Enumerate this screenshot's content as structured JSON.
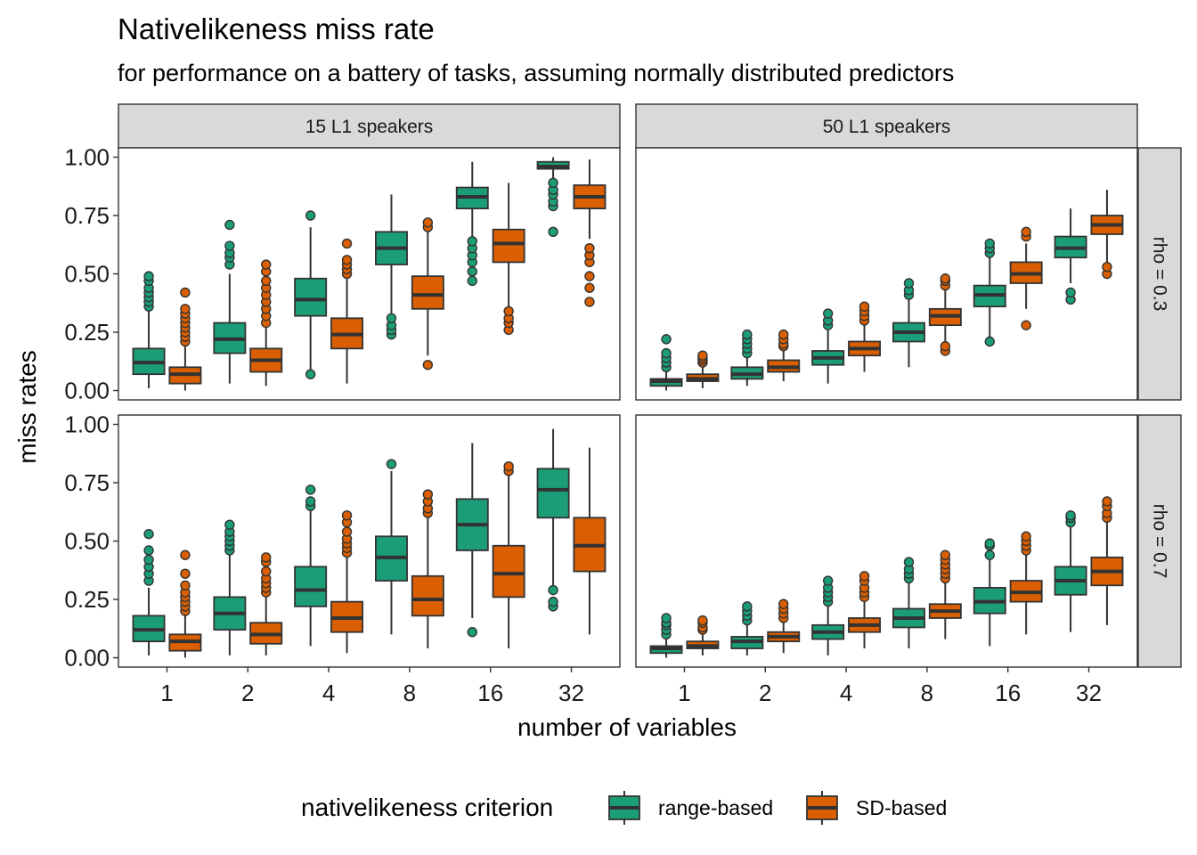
{
  "chart_data": {
    "type": "boxplot",
    "title": "Nativelikeness miss rate",
    "subtitle": "for performance on a battery of tasks, assuming normally distributed predictors",
    "xlabel": "number of variables",
    "ylabel": "miss rates",
    "categories": [
      "1",
      "2",
      "4",
      "8",
      "16",
      "32"
    ],
    "y_ticks": [
      "0.00",
      "0.25",
      "0.50",
      "0.75",
      "1.00"
    ],
    "ylim": [
      -0.04,
      1.04
    ],
    "grid": false,
    "legend": {
      "title": "nativelikeness criterion",
      "position": "bottom",
      "entries": [
        {
          "label": "range-based",
          "color": "#1B9E77"
        },
        {
          "label": "SD-based",
          "color": "#D95F02"
        }
      ]
    },
    "columns": [
      "15 L1 speakers",
      "50 L1 speakers"
    ],
    "rows": [
      "rho = 0.3",
      "rho = 0.7"
    ],
    "panels": [
      {
        "column": "15 L1 speakers",
        "row": "rho = 0.3",
        "series": [
          {
            "name": "range-based",
            "boxes": [
              {
                "min": 0.01,
                "q1": 0.07,
                "median": 0.12,
                "q3": 0.18,
                "max": 0.34,
                "outliers": [
                  0.36,
                  0.38,
                  0.4,
                  0.42,
                  0.44,
                  0.47,
                  0.49
                ]
              },
              {
                "min": 0.03,
                "q1": 0.16,
                "median": 0.22,
                "q3": 0.29,
                "max": 0.5,
                "outliers": [
                  0.54,
                  0.57,
                  0.59,
                  0.62,
                  0.71
                ]
              },
              {
                "min": 0.07,
                "q1": 0.32,
                "median": 0.39,
                "q3": 0.48,
                "max": 0.7,
                "outliers": [
                  0.07,
                  0.75
                ]
              },
              {
                "min": 0.32,
                "q1": 0.54,
                "median": 0.61,
                "q3": 0.68,
                "max": 0.84,
                "outliers": [
                  0.24,
                  0.26,
                  0.28,
                  0.31
                ]
              },
              {
                "min": 0.65,
                "q1": 0.78,
                "median": 0.83,
                "q3": 0.87,
                "max": 0.98,
                "outliers": [
                  0.47,
                  0.51,
                  0.55,
                  0.58,
                  0.61,
                  0.64
                ]
              },
              {
                "min": 0.91,
                "q1": 0.95,
                "median": 0.96,
                "q3": 0.98,
                "max": 1.0,
                "outliers": [
                  0.68,
                  0.79,
                  0.81,
                  0.84,
                  0.86,
                  0.89
                ]
              }
            ]
          },
          {
            "name": "SD-based",
            "boxes": [
              {
                "min": 0.0,
                "q1": 0.03,
                "median": 0.07,
                "q3": 0.1,
                "max": 0.19,
                "outliers": [
                  0.21,
                  0.23,
                  0.25,
                  0.27,
                  0.29,
                  0.31,
                  0.33,
                  0.35,
                  0.42
                ]
              },
              {
                "min": 0.02,
                "q1": 0.08,
                "median": 0.13,
                "q3": 0.18,
                "max": 0.27,
                "outliers": [
                  0.29,
                  0.32,
                  0.35,
                  0.38,
                  0.41,
                  0.44,
                  0.47,
                  0.51,
                  0.54
                ]
              },
              {
                "min": 0.03,
                "q1": 0.18,
                "median": 0.24,
                "q3": 0.31,
                "max": 0.48,
                "outliers": [
                  0.5,
                  0.52,
                  0.54,
                  0.56,
                  0.63
                ]
              },
              {
                "min": 0.15,
                "q1": 0.35,
                "median": 0.41,
                "q3": 0.49,
                "max": 0.68,
                "outliers": [
                  0.11,
                  0.7,
                  0.72
                ]
              },
              {
                "min": 0.35,
                "q1": 0.55,
                "median": 0.63,
                "q3": 0.69,
                "max": 0.89,
                "outliers": [
                  0.26,
                  0.29,
                  0.31,
                  0.34
                ]
              },
              {
                "min": 0.65,
                "q1": 0.78,
                "median": 0.83,
                "q3": 0.88,
                "max": 0.99,
                "outliers": [
                  0.38,
                  0.44,
                  0.49,
                  0.55,
                  0.58,
                  0.61
                ]
              }
            ]
          }
        ]
      },
      {
        "column": "50 L1 speakers",
        "row": "rho = 0.3",
        "series": [
          {
            "name": "range-based",
            "boxes": [
              {
                "min": 0.0,
                "q1": 0.02,
                "median": 0.04,
                "q3": 0.05,
                "max": 0.09,
                "outliers": [
                  0.1,
                  0.12,
                  0.14,
                  0.16,
                  0.22
                ]
              },
              {
                "min": 0.02,
                "q1": 0.05,
                "median": 0.07,
                "q3": 0.1,
                "max": 0.15,
                "outliers": [
                  0.16,
                  0.18,
                  0.2,
                  0.22,
                  0.24
                ]
              },
              {
                "min": 0.03,
                "q1": 0.11,
                "median": 0.14,
                "q3": 0.17,
                "max": 0.26,
                "outliers": [
                  0.28,
                  0.3,
                  0.33
                ]
              },
              {
                "min": 0.1,
                "q1": 0.21,
                "median": 0.25,
                "q3": 0.29,
                "max": 0.39,
                "outliers": [
                  0.41,
                  0.43,
                  0.46
                ]
              },
              {
                "min": 0.21,
                "q1": 0.36,
                "median": 0.41,
                "q3": 0.45,
                "max": 0.57,
                "outliers": [
                  0.21,
                  0.59,
                  0.61,
                  0.63
                ]
              },
              {
                "min": 0.46,
                "q1": 0.57,
                "median": 0.61,
                "q3": 0.66,
                "max": 0.78,
                "outliers": [
                  0.39,
                  0.42
                ]
              }
            ]
          },
          {
            "name": "SD-based",
            "boxes": [
              {
                "min": 0.01,
                "q1": 0.04,
                "median": 0.05,
                "q3": 0.07,
                "max": 0.11,
                "outliers": [
                  0.12,
                  0.13,
                  0.14,
                  0.15
                ]
              },
              {
                "min": 0.04,
                "q1": 0.08,
                "median": 0.1,
                "q3": 0.13,
                "max": 0.17,
                "outliers": [
                  0.19,
                  0.2,
                  0.22,
                  0.24
                ]
              },
              {
                "min": 0.08,
                "q1": 0.15,
                "median": 0.18,
                "q3": 0.21,
                "max": 0.28,
                "outliers": [
                  0.3,
                  0.32,
                  0.34,
                  0.36
                ]
              },
              {
                "min": 0.19,
                "q1": 0.28,
                "median": 0.32,
                "q3": 0.35,
                "max": 0.44,
                "outliers": [
                  0.17,
                  0.19,
                  0.45,
                  0.47,
                  0.48
                ]
              },
              {
                "min": 0.35,
                "q1": 0.46,
                "median": 0.5,
                "q3": 0.55,
                "max": 0.63,
                "outliers": [
                  0.28,
                  0.66,
                  0.68
                ]
              },
              {
                "min": 0.55,
                "q1": 0.67,
                "median": 0.71,
                "q3": 0.75,
                "max": 0.86,
                "outliers": [
                  0.5,
                  0.53
                ]
              }
            ]
          }
        ]
      },
      {
        "column": "15 L1 speakers",
        "row": "rho = 0.7",
        "series": [
          {
            "name": "range-based",
            "boxes": [
              {
                "min": 0.01,
                "q1": 0.07,
                "median": 0.12,
                "q3": 0.18,
                "max": 0.3,
                "outliers": [
                  0.33,
                  0.36,
                  0.39,
                  0.42,
                  0.46,
                  0.53
                ]
              },
              {
                "min": 0.01,
                "q1": 0.12,
                "median": 0.19,
                "q3": 0.26,
                "max": 0.45,
                "outliers": [
                  0.46,
                  0.48,
                  0.5,
                  0.52,
                  0.54,
                  0.57
                ]
              },
              {
                "min": 0.05,
                "q1": 0.22,
                "median": 0.29,
                "q3": 0.39,
                "max": 0.63,
                "outliers": [
                  0.65,
                  0.67,
                  0.72
                ]
              },
              {
                "min": 0.1,
                "q1": 0.33,
                "median": 0.43,
                "q3": 0.52,
                "max": 0.8,
                "outliers": [
                  0.83
                ]
              },
              {
                "min": 0.17,
                "q1": 0.46,
                "median": 0.57,
                "q3": 0.68,
                "max": 0.92,
                "outliers": [
                  0.11
                ]
              },
              {
                "min": 0.31,
                "q1": 0.6,
                "median": 0.72,
                "q3": 0.81,
                "max": 0.98,
                "outliers": [
                  0.22,
                  0.24,
                  0.29
                ]
              }
            ]
          },
          {
            "name": "SD-based",
            "boxes": [
              {
                "min": 0.0,
                "q1": 0.03,
                "median": 0.07,
                "q3": 0.1,
                "max": 0.18,
                "outliers": [
                  0.2,
                  0.22,
                  0.24,
                  0.26,
                  0.28,
                  0.31,
                  0.36,
                  0.44
                ]
              },
              {
                "min": 0.01,
                "q1": 0.06,
                "median": 0.1,
                "q3": 0.15,
                "max": 0.26,
                "outliers": [
                  0.28,
                  0.3,
                  0.32,
                  0.34,
                  0.37,
                  0.41,
                  0.43
                ]
              },
              {
                "min": 0.02,
                "q1": 0.11,
                "median": 0.17,
                "q3": 0.24,
                "max": 0.43,
                "outliers": [
                  0.45,
                  0.47,
                  0.49,
                  0.51,
                  0.54,
                  0.58,
                  0.61
                ]
              },
              {
                "min": 0.04,
                "q1": 0.18,
                "median": 0.25,
                "q3": 0.35,
                "max": 0.6,
                "outliers": [
                  0.62,
                  0.64,
                  0.67,
                  0.7
                ]
              },
              {
                "min": 0.04,
                "q1": 0.26,
                "median": 0.36,
                "q3": 0.48,
                "max": 0.78,
                "outliers": [
                  0.8,
                  0.82
                ]
              },
              {
                "min": 0.1,
                "q1": 0.37,
                "median": 0.48,
                "q3": 0.6,
                "max": 0.9,
                "outliers": []
              }
            ]
          }
        ]
      },
      {
        "column": "50 L1 speakers",
        "row": "rho = 0.7",
        "series": [
          {
            "name": "range-based",
            "boxes": [
              {
                "min": 0.0,
                "q1": 0.02,
                "median": 0.04,
                "q3": 0.05,
                "max": 0.09,
                "outliers": [
                  0.1,
                  0.12,
                  0.14,
                  0.15,
                  0.17
                ]
              },
              {
                "min": 0.01,
                "q1": 0.04,
                "median": 0.07,
                "q3": 0.09,
                "max": 0.14,
                "outliers": [
                  0.16,
                  0.18,
                  0.2,
                  0.22
                ]
              },
              {
                "min": 0.01,
                "q1": 0.08,
                "median": 0.11,
                "q3": 0.14,
                "max": 0.22,
                "outliers": [
                  0.24,
                  0.26,
                  0.28,
                  0.3,
                  0.33
                ]
              },
              {
                "min": 0.04,
                "q1": 0.13,
                "median": 0.17,
                "q3": 0.21,
                "max": 0.32,
                "outliers": [
                  0.34,
                  0.36,
                  0.38,
                  0.41
                ]
              },
              {
                "min": 0.05,
                "q1": 0.19,
                "median": 0.24,
                "q3": 0.3,
                "max": 0.42,
                "outliers": [
                  0.44,
                  0.48,
                  0.49
                ]
              },
              {
                "min": 0.11,
                "q1": 0.27,
                "median": 0.33,
                "q3": 0.39,
                "max": 0.56,
                "outliers": [
                  0.58,
                  0.6,
                  0.61
                ]
              }
            ]
          },
          {
            "name": "SD-based",
            "boxes": [
              {
                "min": 0.01,
                "q1": 0.04,
                "median": 0.05,
                "q3": 0.07,
                "max": 0.11,
                "outliers": [
                  0.12,
                  0.13,
                  0.15,
                  0.16
                ]
              },
              {
                "min": 0.02,
                "q1": 0.07,
                "median": 0.09,
                "q3": 0.11,
                "max": 0.16,
                "outliers": [
                  0.17,
                  0.19,
                  0.21,
                  0.23
                ]
              },
              {
                "min": 0.04,
                "q1": 0.11,
                "median": 0.14,
                "q3": 0.17,
                "max": 0.24,
                "outliers": [
                  0.26,
                  0.28,
                  0.3,
                  0.33,
                  0.35
                ]
              },
              {
                "min": 0.08,
                "q1": 0.17,
                "median": 0.2,
                "q3": 0.23,
                "max": 0.32,
                "outliers": [
                  0.34,
                  0.36,
                  0.38,
                  0.4,
                  0.42,
                  0.44
                ]
              },
              {
                "min": 0.1,
                "q1": 0.24,
                "median": 0.28,
                "q3": 0.33,
                "max": 0.45,
                "outliers": [
                  0.46,
                  0.48,
                  0.5,
                  0.52
                ]
              },
              {
                "min": 0.14,
                "q1": 0.31,
                "median": 0.37,
                "q3": 0.43,
                "max": 0.58,
                "outliers": [
                  0.6,
                  0.62,
                  0.65,
                  0.67
                ]
              }
            ]
          }
        ]
      }
    ]
  }
}
